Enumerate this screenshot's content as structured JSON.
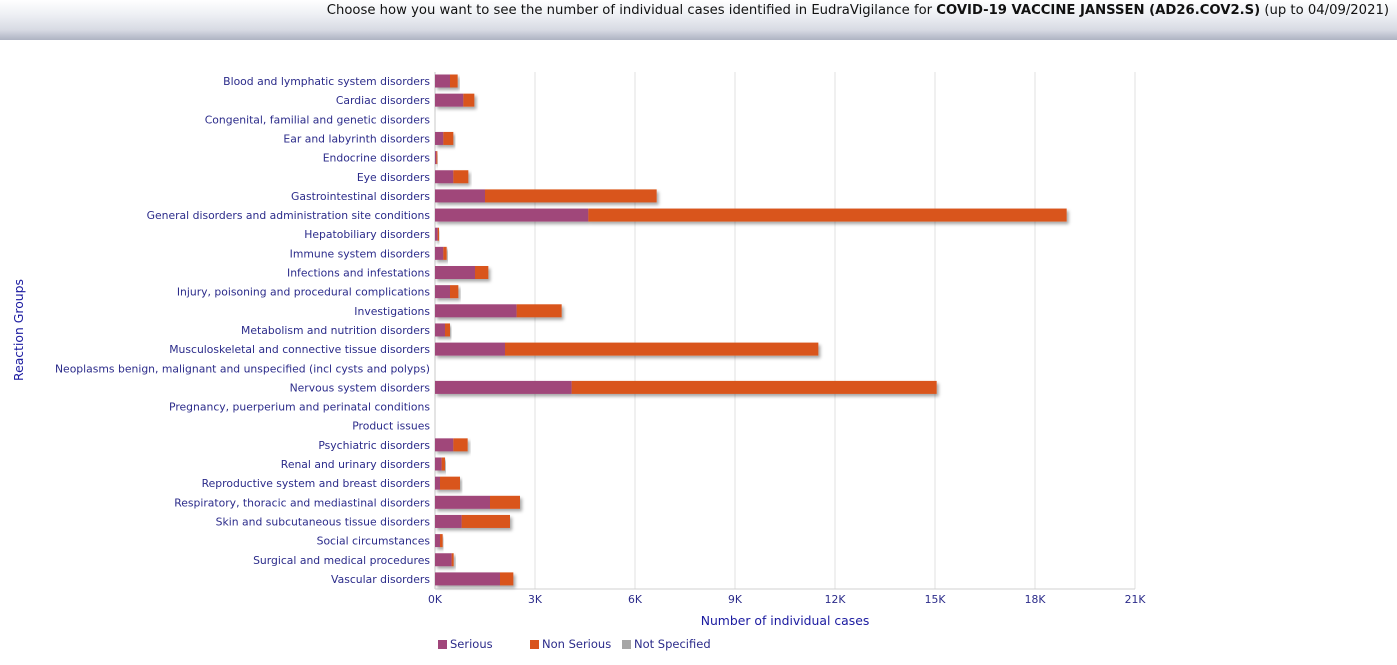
{
  "header": {
    "prefix": "Choose how you want to see the number of individual cases identified in EudraVigilance for ",
    "product": "COVID-19 VACCINE JANSSEN (AD26.COV2.S)",
    "suffix": " (up to 04/09/2021)"
  },
  "colors": {
    "serious": "#a0467a",
    "non_serious": "#d9541c",
    "not_specified": "#a6a6a6",
    "grid": "#e2e2e2",
    "text": "#2b2b8a"
  },
  "chart_data": {
    "type": "bar",
    "orientation": "horizontal",
    "stacked": true,
    "title": "",
    "xlabel": "Number of individual cases",
    "ylabel": "Reaction Groups",
    "xlim": [
      0,
      21000
    ],
    "x_ticks": [
      "0K",
      "3K",
      "6K",
      "9K",
      "12K",
      "15K",
      "18K",
      "21K"
    ],
    "grid": true,
    "legend_position": "bottom-left",
    "categories": [
      "Blood and lymphatic system disorders",
      "Cardiac disorders",
      "Congenital, familial and genetic disorders",
      "Ear and labyrinth disorders",
      "Endocrine disorders",
      "Eye disorders",
      "Gastrointestinal disorders",
      "General disorders and administration site conditions",
      "Hepatobiliary disorders",
      "Immune system disorders",
      "Infections and infestations",
      "Injury, poisoning and procedural complications",
      "Investigations",
      "Metabolism and nutrition disorders",
      "Musculoskeletal and connective tissue disorders",
      "Neoplasms benign, malignant and unspecified (incl cysts and polyps)",
      "Nervous system disorders",
      "Pregnancy, puerperium and perinatal conditions",
      "Product issues",
      "Psychiatric disorders",
      "Renal and urinary disorders",
      "Reproductive system and breast disorders",
      "Respiratory, thoracic and mediastinal disorders",
      "Skin and subcutaneous tissue disorders",
      "Social circumstances",
      "Surgical and medical procedures",
      "Vascular disorders"
    ],
    "series": [
      {
        "name": "Serious",
        "values": [
          450,
          850,
          0,
          250,
          40,
          550,
          1500,
          4600,
          80,
          250,
          1200,
          450,
          2450,
          300,
          2100,
          0,
          4100,
          0,
          0,
          550,
          200,
          150,
          1650,
          800,
          150,
          500,
          1950
        ]
      },
      {
        "name": "Non Serious",
        "values": [
          230,
          330,
          0,
          300,
          20,
          450,
          5150,
          14350,
          40,
          100,
          400,
          250,
          1350,
          150,
          9400,
          0,
          10950,
          0,
          0,
          430,
          100,
          600,
          900,
          1450,
          80,
          60,
          400
        ]
      },
      {
        "name": "Not Specified",
        "values": [
          0,
          0,
          0,
          0,
          0,
          0,
          0,
          0,
          0,
          0,
          0,
          0,
          0,
          0,
          0,
          0,
          0,
          0,
          0,
          0,
          0,
          0,
          0,
          0,
          0,
          0,
          0
        ]
      }
    ]
  }
}
